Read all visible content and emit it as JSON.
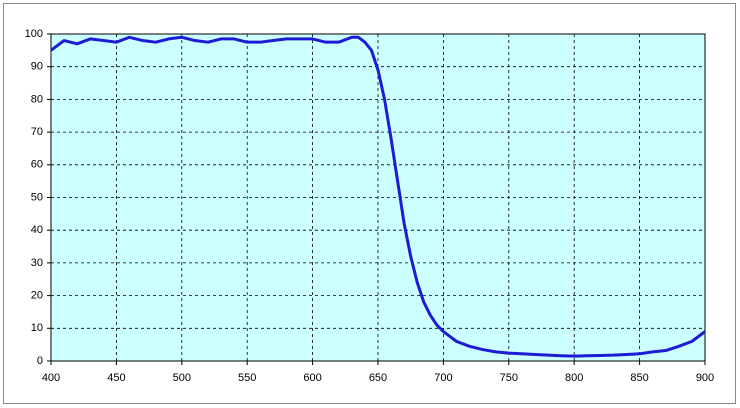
{
  "chart_data": {
    "type": "line",
    "x": [
      400,
      410,
      420,
      430,
      440,
      450,
      460,
      470,
      480,
      490,
      500,
      510,
      520,
      530,
      540,
      550,
      560,
      570,
      580,
      590,
      600,
      610,
      620,
      630,
      635,
      640,
      645,
      650,
      655,
      660,
      665,
      670,
      675,
      680,
      685,
      690,
      695,
      700,
      710,
      720,
      730,
      740,
      750,
      760,
      770,
      780,
      790,
      800,
      810,
      820,
      830,
      840,
      850,
      860,
      870,
      880,
      890,
      900
    ],
    "values": [
      95,
      98,
      97,
      98.5,
      98,
      97.5,
      99,
      98,
      97.5,
      98.5,
      99,
      98,
      97.5,
      98.5,
      98.5,
      97.5,
      97.5,
      98,
      98.5,
      98.5,
      98.5,
      97.5,
      97.5,
      99,
      99,
      97.5,
      95,
      89,
      80,
      68,
      55,
      42,
      32,
      24,
      18,
      14,
      11,
      9,
      6,
      4.5,
      3.5,
      2.8,
      2.4,
      2.2,
      2,
      1.8,
      1.6,
      1.5,
      1.6,
      1.7,
      1.8,
      2,
      2.2,
      2.8,
      3.2,
      4.5,
      6,
      9
    ],
    "color": "#1c1cd4",
    "background": "#ccffff",
    "xlim": [
      400,
      900
    ],
    "xticks": [
      400,
      450,
      500,
      550,
      600,
      650,
      700,
      750,
      800,
      850,
      900
    ],
    "ylim": [
      0,
      100
    ],
    "yticks": [
      0,
      10,
      20,
      30,
      40,
      50,
      60,
      70,
      80,
      90,
      100
    ],
    "grid": true
  }
}
